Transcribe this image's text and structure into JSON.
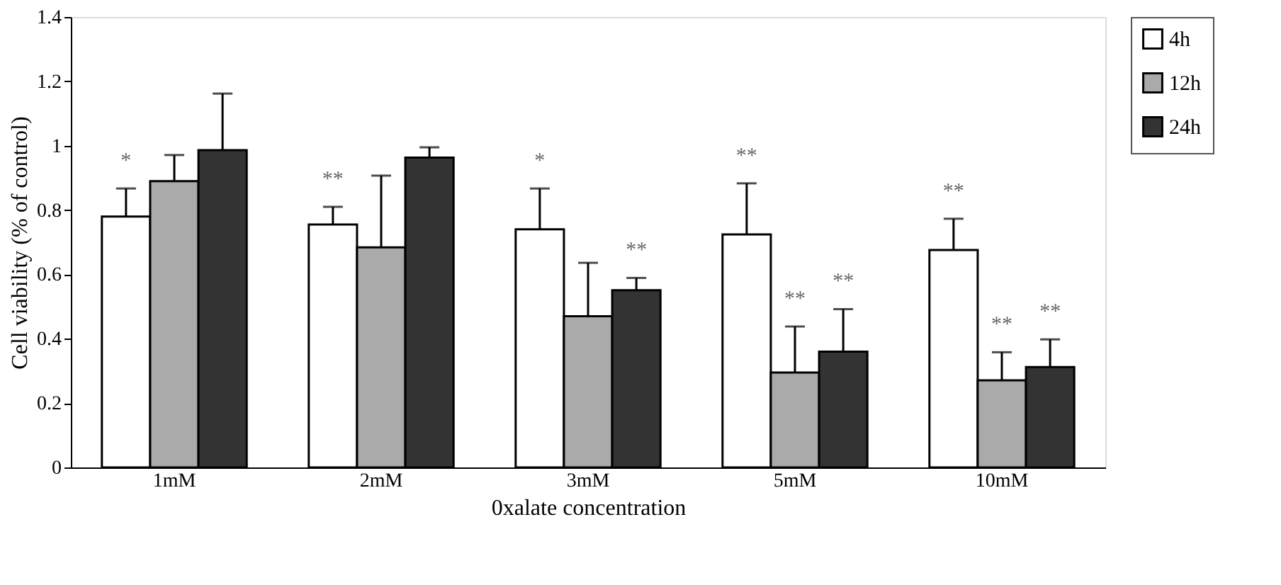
{
  "chart_data": {
    "type": "bar",
    "xlabel": "0xalate concentration",
    "ylabel": "Cell viability (% of control)",
    "categories": [
      "1mM",
      "2mM",
      "3mM",
      "5mM",
      "10mM"
    ],
    "series": [
      {
        "name": "4h",
        "color": "#ffffff",
        "values": [
          0.78,
          0.755,
          0.74,
          0.724,
          0.676
        ],
        "errors": [
          [
            0.78,
            0.867
          ],
          [
            0.755,
            0.81
          ],
          [
            0.74,
            0.867
          ],
          [
            0.724,
            0.883
          ],
          [
            0.676,
            0.773
          ]
        ],
        "value_labels": [
          "*",
          "**",
          "*",
          "**",
          "**"
        ]
      },
      {
        "name": "12h",
        "color": "#aaaaaa",
        "values": [
          0.89,
          0.684,
          0.47,
          0.295,
          0.271
        ],
        "errors": [
          [
            0.89,
            0.971
          ],
          [
            0.684,
            0.907
          ],
          [
            0.47,
            0.636
          ],
          [
            0.295,
            0.438
          ],
          [
            0.271,
            0.358
          ]
        ],
        "value_labels": [
          null,
          null,
          null,
          "**",
          "**"
        ]
      },
      {
        "name": "24h",
        "color": "#333333",
        "values": [
          0.986,
          0.963,
          0.551,
          0.36,
          0.312
        ],
        "errors": [
          [
            0.986,
            1.162
          ],
          [
            0.963,
            0.995
          ],
          [
            0.551,
            0.589
          ],
          [
            0.36,
            0.492
          ],
          [
            0.312,
            0.398
          ]
        ],
        "value_labels": [
          null,
          null,
          "**",
          "**",
          "**"
        ]
      }
    ],
    "ylim": [
      0,
      1.4
    ],
    "yticks": [
      0,
      0.2,
      0.4,
      0.6,
      0.8,
      1,
      1.2,
      1.4
    ],
    "grid": false,
    "legend": "top right"
  }
}
